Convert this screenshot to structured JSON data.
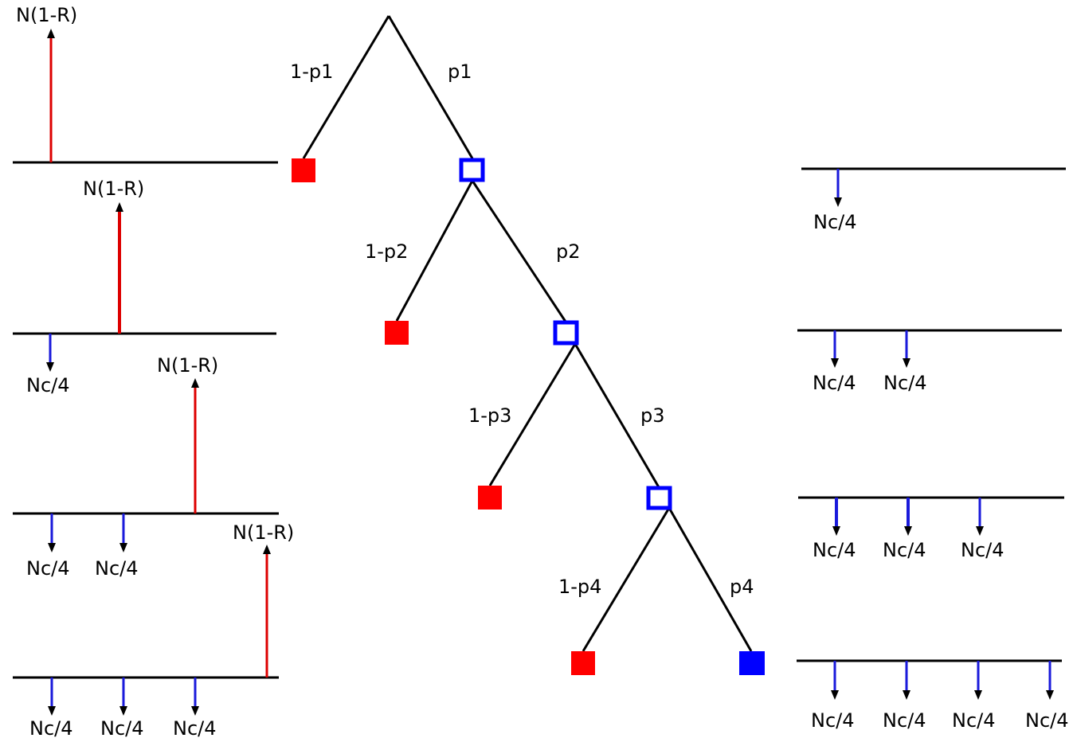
{
  "colors": {
    "recovery_arrow": "#dd0000",
    "coupon_arrow": "#1a1adb",
    "default_node": "#ff0000",
    "survival_node": "#0000ff",
    "line": "#000000"
  },
  "tree": {
    "branch_labels": {
      "default": [
        "1-p1",
        "1-p2",
        "1-p3",
        "1-p4"
      ],
      "survive": [
        "p1",
        "p2",
        "p3",
        "p4"
      ]
    }
  },
  "left_timelines": {
    "recovery_label": "N(1-R)",
    "coupon_label": "Nc/4",
    "coupon_counts": [
      0,
      1,
      2,
      3
    ]
  },
  "right_timelines": {
    "coupon_label": "Nc/4",
    "coupon_counts": [
      1,
      2,
      3,
      4
    ]
  }
}
